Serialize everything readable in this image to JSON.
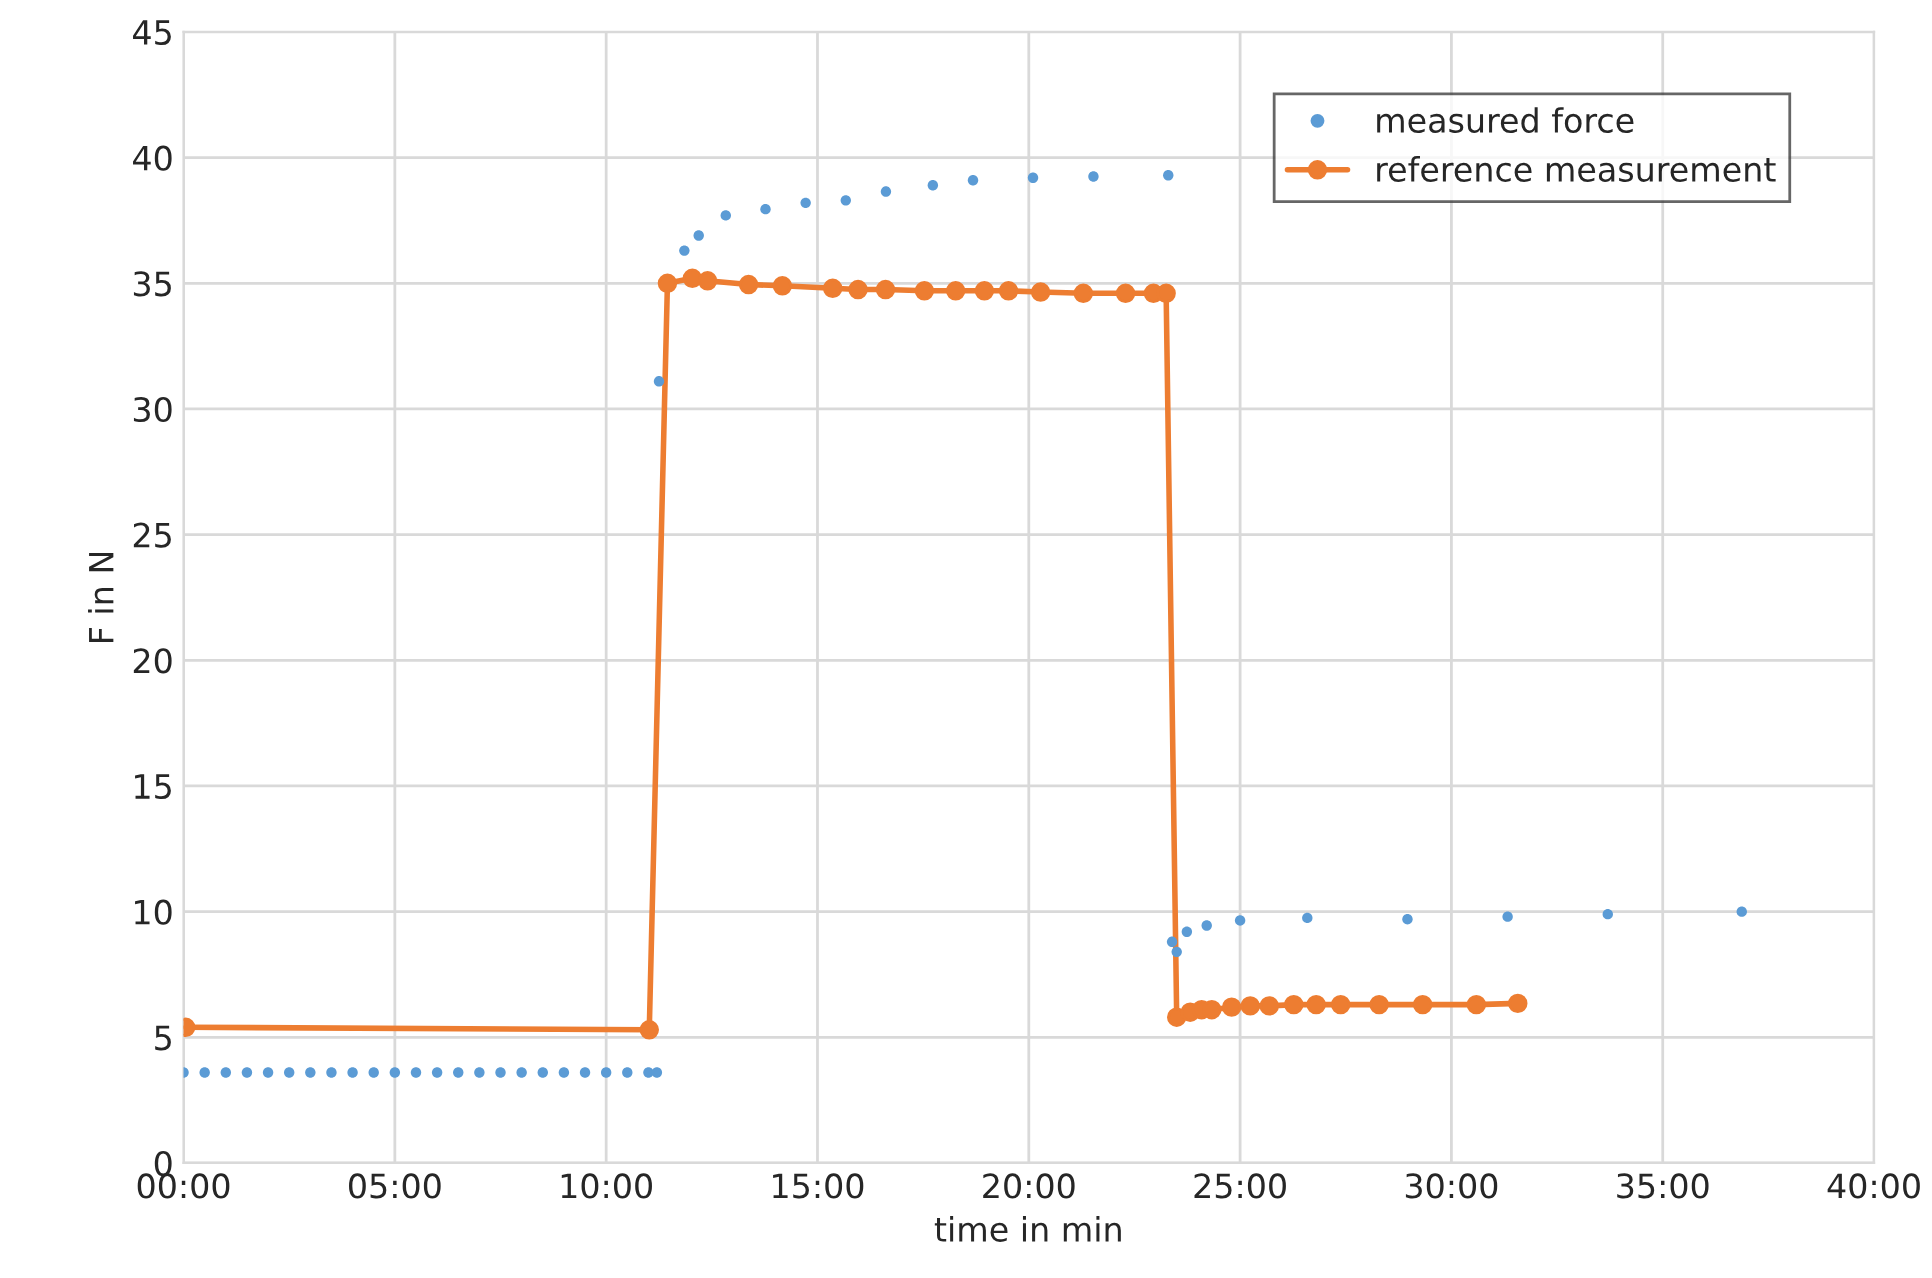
{
  "chart_data": {
    "type": "line",
    "xlabel": "time in min",
    "ylabel": "F in N",
    "xlim": [
      0,
      40
    ],
    "ylim": [
      0,
      45
    ],
    "xticks": [
      {
        "value": 0,
        "label": "00:00"
      },
      {
        "value": 5,
        "label": "05:00"
      },
      {
        "value": 10,
        "label": "10:00"
      },
      {
        "value": 15,
        "label": "15:00"
      },
      {
        "value": 20,
        "label": "20:00"
      },
      {
        "value": 25,
        "label": "25:00"
      },
      {
        "value": 30,
        "label": "30:00"
      },
      {
        "value": 35,
        "label": "35:00"
      },
      {
        "value": 40,
        "label": "40:00"
      }
    ],
    "yticks": [
      0,
      5,
      10,
      15,
      20,
      25,
      30,
      35,
      40,
      45
    ],
    "grid": true,
    "legend": "top right",
    "marker": "circle",
    "line_style": "solid",
    "series": [
      {
        "name": "measured force",
        "type": "scatter",
        "color": "#5b9bd5",
        "x": [
          0,
          0.5,
          1,
          1.5,
          2,
          2.5,
          3,
          3.5,
          4,
          4.5,
          5,
          5.5,
          6,
          6.5,
          7,
          7.5,
          8,
          8.5,
          9,
          9.5,
          10,
          10.5,
          11,
          11.2,
          11.25,
          11.85,
          12.19,
          12.83,
          13.77,
          14.72,
          15.67,
          16.62,
          17.73,
          18.68,
          20.1,
          21.53,
          23.3,
          23.39,
          23.5,
          23.74,
          24.21,
          25.0,
          26.59,
          28.96,
          31.33,
          33.7,
          36.87
        ],
        "values": [
          3.6,
          3.6,
          3.6,
          3.6,
          3.6,
          3.6,
          3.6,
          3.6,
          3.6,
          3.6,
          3.6,
          3.6,
          3.6,
          3.6,
          3.6,
          3.6,
          3.6,
          3.6,
          3.6,
          3.6,
          3.6,
          3.6,
          3.6,
          3.6,
          31.1,
          36.3,
          36.9,
          37.7,
          37.95,
          38.2,
          38.3,
          38.65,
          38.9,
          39.1,
          39.2,
          39.25,
          39.3,
          8.8,
          8.4,
          9.2,
          9.45,
          9.65,
          9.75,
          9.7,
          9.8,
          9.9,
          10.0
        ]
      },
      {
        "name": "reference measurement",
        "color": "#ed7d31",
        "x": [
          0.05,
          11.02,
          11.45,
          12.04,
          12.4,
          13.37,
          14.17,
          15.36,
          15.96,
          16.61,
          17.53,
          18.27,
          18.95,
          19.52,
          20.28,
          21.29,
          22.29,
          22.95,
          23.25,
          23.5,
          23.82,
          24.09,
          24.33,
          24.8,
          25.24,
          25.69,
          26.27,
          26.8,
          27.38,
          28.29,
          29.32,
          30.59,
          31.57
        ],
        "values": [
          5.4,
          5.3,
          35.0,
          35.2,
          35.1,
          34.95,
          34.9,
          34.8,
          34.75,
          34.75,
          34.7,
          34.7,
          34.7,
          34.7,
          34.65,
          34.6,
          34.6,
          34.6,
          34.6,
          5.8,
          6.0,
          6.1,
          6.1,
          6.2,
          6.25,
          6.25,
          6.3,
          6.3,
          6.3,
          6.3,
          6.3,
          6.3,
          6.35
        ]
      }
    ]
  }
}
